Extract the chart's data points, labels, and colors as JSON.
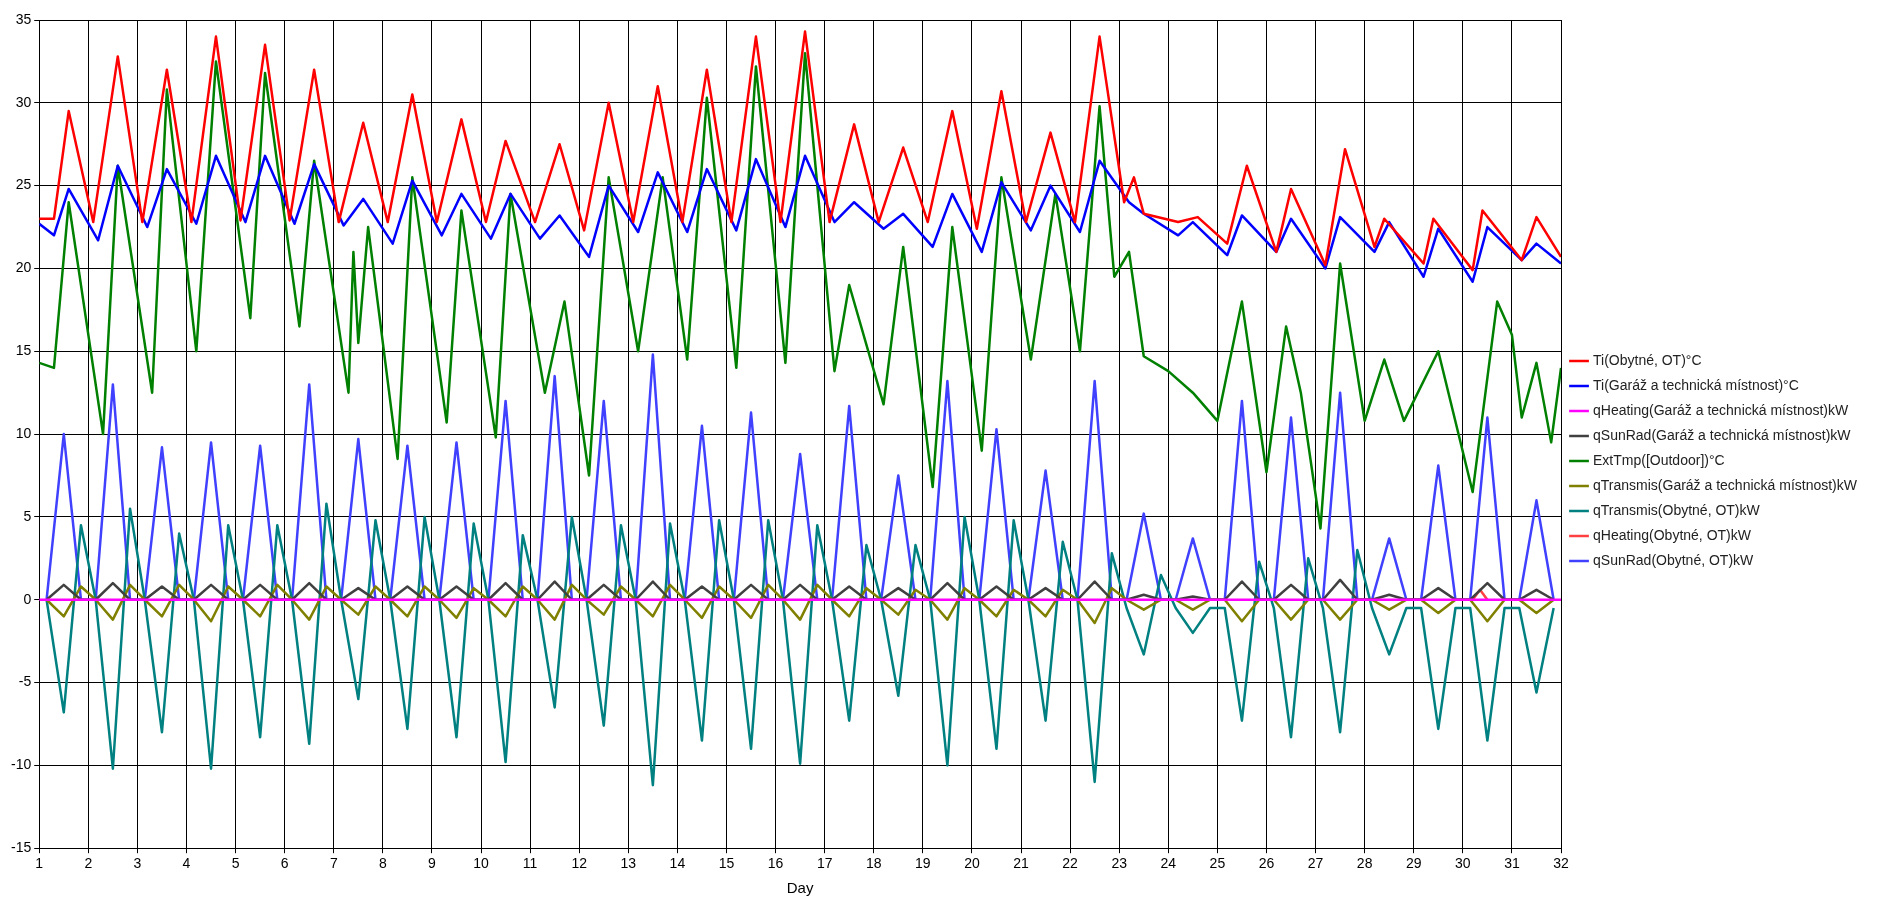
{
  "chart_data": {
    "type": "line",
    "xlabel": "Day",
    "xlim": [
      1,
      32
    ],
    "xticks": [
      1,
      2,
      3,
      4,
      5,
      6,
      7,
      8,
      9,
      10,
      11,
      12,
      13,
      14,
      15,
      16,
      17,
      18,
      19,
      20,
      21,
      22,
      23,
      24,
      25,
      26,
      27,
      28,
      29,
      30,
      31,
      32
    ],
    "ylim": [
      -15,
      35
    ],
    "yticks": [
      -15,
      -10,
      -5,
      0,
      5,
      10,
      15,
      20,
      25,
      30,
      35
    ],
    "grid": true,
    "legend": "right",
    "marker": "none",
    "line_style": "solid",
    "x": [
      1.15,
      1.5,
      1.85,
      2.15,
      2.5,
      2.85,
      3.15,
      3.5,
      3.85,
      4.15,
      4.5,
      4.85,
      5.15,
      5.5,
      5.85,
      6.15,
      6.5,
      6.85,
      7.15,
      7.5,
      7.85,
      8.15,
      8.5,
      8.85,
      9.15,
      9.5,
      9.85,
      10.15,
      10.5,
      10.85,
      11.15,
      11.5,
      11.85,
      12.15,
      12.5,
      12.85,
      13.15,
      13.5,
      13.85,
      14.15,
      14.5,
      14.85,
      15.15,
      15.5,
      15.85,
      16.15,
      16.5,
      16.85,
      17.15,
      17.5,
      17.85,
      18.15,
      18.5,
      18.85,
      19.15,
      19.5,
      19.85,
      20.15,
      20.5,
      20.85,
      21.15,
      21.5,
      21.85,
      22.15,
      22.5,
      22.85,
      23.15,
      23.5,
      23.85,
      24.15,
      24.5,
      24.85,
      25.15,
      25.5,
      25.85,
      26.15,
      26.5,
      26.85,
      27.15,
      27.5,
      27.85,
      28.15,
      28.5,
      28.85,
      29.15,
      29.5,
      29.85,
      30.15,
      30.5,
      30.85,
      31.15,
      31.5,
      31.85
    ],
    "series": [
      {
        "name": "Ti(Obytné, OT)°C",
        "color": "#ff0000",
        "x": [
          1,
          1.3,
          1.6,
          2.1,
          2.6,
          3.1,
          3.6,
          4.1,
          4.6,
          5.1,
          5.6,
          6.1,
          6.6,
          7.1,
          7.6,
          8.1,
          8.6,
          9.1,
          9.6,
          10.1,
          10.5,
          11.1,
          11.6,
          12.1,
          12.6,
          13.1,
          13.6,
          14.1,
          14.6,
          15.1,
          15.6,
          16.1,
          16.6,
          17.1,
          17.6,
          18.1,
          18.6,
          19.1,
          19.6,
          20.1,
          20.6,
          21.1,
          21.6,
          22.1,
          22.6,
          23.1,
          23.3,
          23.5,
          24.2,
          24.6,
          25.2,
          25.6,
          26.2,
          26.5,
          27.2,
          27.6,
          28.2,
          28.4,
          29.2,
          29.4,
          30.2,
          30.4,
          31.2,
          31.5,
          32
        ],
        "values": [
          23,
          23,
          29.5,
          22.8,
          32.8,
          22.8,
          32,
          22.8,
          34,
          22.9,
          33.5,
          22.9,
          32,
          22.8,
          28.8,
          22.8,
          30.5,
          22.8,
          29,
          22.8,
          27.7,
          22.8,
          27.5,
          22.3,
          30,
          22.8,
          31,
          22.8,
          32,
          22.8,
          34,
          22.8,
          34.3,
          22.8,
          28.7,
          22.8,
          27.3,
          22.8,
          29.5,
          22.4,
          30.7,
          22.8,
          28.2,
          22.8,
          34,
          24,
          25.5,
          23.3,
          22.8,
          23.1,
          21.5,
          26.2,
          21,
          24.8,
          20.2,
          27.2,
          21.3,
          23,
          20.3,
          23,
          19.9,
          23.5,
          20.5,
          23.1,
          20.7
        ]
      },
      {
        "name": "Ti(Garáž a technická místnost)°C",
        "color": "#0000ff",
        "x": [
          1,
          1.3,
          1.6,
          2.2,
          2.6,
          3.2,
          3.6,
          4.2,
          4.6,
          5.2,
          5.6,
          6.2,
          6.6,
          7.2,
          7.6,
          8.2,
          8.6,
          9.2,
          9.6,
          10.2,
          10.6,
          11.2,
          11.6,
          12.2,
          12.6,
          13.2,
          13.6,
          14.2,
          14.6,
          15.2,
          15.6,
          16.2,
          16.6,
          17.2,
          17.6,
          18.2,
          18.6,
          19.2,
          19.6,
          20.2,
          20.6,
          21.2,
          21.6,
          22.2,
          22.6,
          23.2,
          23.5,
          24.2,
          24.5,
          25.2,
          25.5,
          26.2,
          26.5,
          27.2,
          27.5,
          28.2,
          28.5,
          29.2,
          29.5,
          30.2,
          30.5,
          31.2,
          31.5,
          32
        ],
        "values": [
          22.7,
          22,
          24.8,
          21.7,
          26.2,
          22.5,
          26,
          22.7,
          26.8,
          22.8,
          26.8,
          22.7,
          26.3,
          22.6,
          24.2,
          21.5,
          25.3,
          22,
          24.5,
          21.8,
          24.5,
          21.8,
          23.2,
          20.7,
          25,
          22.2,
          25.8,
          22.2,
          26,
          22.3,
          26.6,
          22.5,
          26.8,
          22.8,
          24,
          22.4,
          23.3,
          21.3,
          24.5,
          21,
          25.2,
          22.3,
          25,
          22.2,
          26.5,
          24,
          23.3,
          22,
          22.8,
          20.8,
          23.2,
          21,
          23,
          20,
          23.1,
          21,
          22.8,
          19.5,
          22.4,
          19.2,
          22.5,
          20.5,
          21.5,
          20.3
        ]
      },
      {
        "name": "qHeating(Garáž a technická místnost)kW",
        "color": "#ff00ff",
        "x": [
          1,
          32
        ],
        "values": [
          0,
          0
        ]
      },
      {
        "name": "qSunRad(Garáž a technická místnost)kW",
        "color": "#404040",
        "values": [
          0,
          0.9,
          0,
          0,
          1,
          0,
          0,
          0.8,
          0,
          0,
          0.9,
          0,
          0,
          0.9,
          0,
          0,
          1,
          0,
          0,
          0.7,
          0,
          0,
          0.8,
          0,
          0,
          0.8,
          0,
          0,
          1,
          0,
          0,
          1.1,
          0,
          0,
          0.9,
          0,
          0,
          1.1,
          0,
          0,
          0.8,
          0,
          0,
          0.9,
          0,
          0,
          0.9,
          0,
          0,
          0.8,
          0,
          0,
          0.7,
          0,
          0,
          1,
          0,
          0,
          0.8,
          0,
          0,
          0.7,
          0,
          0,
          1.1,
          0,
          0,
          0.3,
          0,
          0,
          0.2,
          0,
          0,
          1.1,
          0,
          0,
          0.9,
          0,
          0,
          1.2,
          0,
          0,
          0.3,
          0,
          0,
          0.7,
          0,
          0,
          1,
          0,
          0,
          0.6,
          0
        ]
      },
      {
        "name": "ExtTmp([Outdoor])°C",
        "color": "#008000",
        "x": [
          1,
          1.3,
          1.6,
          2.3,
          2.6,
          3.3,
          3.6,
          4.2,
          4.6,
          5.3,
          5.6,
          6.3,
          6.6,
          7.3,
          7.4,
          7.5,
          7.7,
          8.3,
          8.6,
          9.3,
          9.6,
          10.3,
          10.6,
          11.3,
          11.7,
          12.2,
          12.6,
          13.2,
          13.7,
          14.2,
          14.6,
          15.2,
          15.6,
          16.2,
          16.6,
          17.2,
          17.5,
          18.2,
          18.6,
          19.2,
          19.6,
          20.2,
          20.6,
          21.2,
          21.7,
          22.2,
          22.6,
          22.9,
          23.2,
          23.5,
          24,
          24.5,
          25,
          25.5,
          26,
          26.4,
          26.7,
          27.1,
          27.5,
          28,
          28.4,
          28.8,
          29.5,
          30.2,
          30.7,
          31,
          31.2,
          31.5,
          31.8,
          32
        ],
        "values": [
          14.3,
          14,
          24,
          10,
          26.2,
          12.5,
          30.8,
          15,
          32.5,
          17,
          31.8,
          16.5,
          26.5,
          12.5,
          21,
          15.5,
          22.5,
          8.5,
          25.5,
          10.7,
          23.5,
          9.8,
          24.5,
          12.5,
          18,
          7.5,
          25.5,
          15,
          25.5,
          14.5,
          30.3,
          14,
          32.2,
          14.3,
          33,
          13.8,
          19,
          11.8,
          21.3,
          6.8,
          22.5,
          9,
          25.5,
          14.5,
          24.5,
          15,
          29.8,
          19.5,
          21,
          14.7,
          13.8,
          12.5,
          10.8,
          18,
          7.7,
          16.5,
          12.5,
          4.3,
          20.3,
          10.8,
          14.5,
          10.8,
          15,
          6.5,
          18,
          16,
          11,
          14.3,
          9.5,
          14
        ]
      },
      {
        "name": "qTransmis(Garáž a technická místnost)kW",
        "color": "#808000",
        "values": [
          0,
          -1,
          0.8,
          0,
          -1.2,
          0.9,
          0,
          -1,
          0.9,
          0,
          -1.3,
          0.8,
          0,
          -1,
          0.9,
          0,
          -1.2,
          0.8,
          0,
          -0.9,
          0.8,
          0,
          -1,
          0.8,
          0,
          -1.1,
          0.7,
          0,
          -1,
          0.8,
          0,
          -1.2,
          0.9,
          0,
          -0.9,
          0.8,
          0,
          -1,
          0.9,
          0,
          -1.1,
          0.8,
          0,
          -1.1,
          0.9,
          0,
          -1.2,
          0.9,
          0,
          -1,
          0.7,
          0,
          -0.9,
          0.6,
          0,
          -1.2,
          0.7,
          0,
          -1,
          0.6,
          0,
          -1,
          0.6,
          0,
          -1.4,
          0.7,
          0,
          -0.6,
          0,
          0,
          -0.6,
          0,
          0,
          -1.3,
          0,
          0,
          -1.2,
          0,
          0,
          -1.2,
          0,
          0,
          -0.6,
          0,
          0,
          -0.8,
          0,
          0,
          -1.3,
          0,
          0,
          -0.8,
          0
        ]
      },
      {
        "name": "qTransmis(Obytné, OT)kW",
        "color": "#008080",
        "values": [
          0,
          -6.8,
          4.5,
          0,
          -10.2,
          5.5,
          0,
          -8,
          4,
          0,
          -10.2,
          4.5,
          0,
          -8.3,
          4.5,
          0,
          -8.7,
          5.8,
          0,
          -6,
          4.8,
          0,
          -7.8,
          5,
          0,
          -8.3,
          4.6,
          0,
          -9.8,
          3.9,
          0,
          -6.5,
          5,
          0,
          -7.6,
          4.5,
          0,
          -11.2,
          4.6,
          0,
          -8.5,
          4.8,
          0,
          -9,
          4.8,
          0,
          -9.9,
          4.5,
          0,
          -7.3,
          3.3,
          0,
          -5.8,
          3.3,
          0,
          -10,
          5,
          0,
          -9,
          4.8,
          0,
          -7.3,
          3.5,
          0,
          -11,
          2.8,
          -0.5,
          -3.3,
          1.5,
          -0.5,
          -2,
          -0.5,
          -0.5,
          -7.3,
          2.3,
          -0.5,
          -8.3,
          2.5,
          -0.5,
          -8,
          3,
          -0.5,
          -3.3,
          -0.5,
          -0.5,
          -7.8,
          -0.5,
          -0.5,
          -8.5,
          -0.5,
          -0.5,
          -5.6,
          -0.5
        ]
      },
      {
        "name": "qHeating(Obytné, OT)kW",
        "color": "#ff4040",
        "x": [
          30.2,
          30.35,
          30.5
        ],
        "values": [
          0,
          0.6,
          0
        ]
      },
      {
        "name": "qSunRad(Obytné, OT)kW",
        "color": "#4040ff",
        "values": [
          0,
          10,
          0,
          0,
          13,
          0,
          0,
          9.2,
          0,
          0,
          9.5,
          0,
          0,
          9.3,
          0,
          0,
          13,
          0,
          0,
          9.7,
          0,
          0,
          9.3,
          0,
          0,
          9.5,
          0,
          0,
          12,
          0,
          0,
          13.5,
          0,
          0,
          12,
          0,
          0,
          14.8,
          0,
          0,
          10.5,
          0,
          0,
          11.3,
          0,
          0,
          8.8,
          0,
          0,
          11.7,
          0,
          0,
          7.5,
          0,
          0,
          13.2,
          0,
          0,
          10.3,
          0,
          0,
          7.8,
          0,
          0,
          13.2,
          0,
          0,
          5.2,
          0,
          0,
          3.7,
          0,
          0,
          12,
          0,
          0,
          11,
          0,
          0,
          12.5,
          0,
          0,
          3.7,
          0,
          0,
          8.1,
          0,
          0,
          11,
          0,
          0,
          6,
          0
        ]
      }
    ]
  }
}
